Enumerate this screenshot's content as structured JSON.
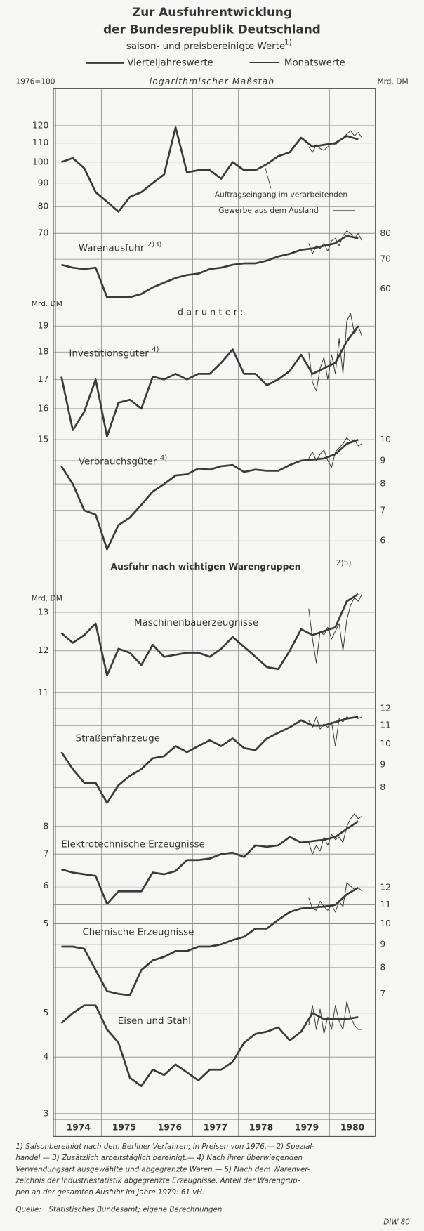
{
  "title_lines": [
    "Zur Ausfuhrentwicklung",
    "der Bundesrepublik Deutschland"
  ],
  "subtitle": "saison- und preisbereinigte Werte",
  "subtitle_note": "1)",
  "scale_note": "logarithmischer Maßstab",
  "series_styles": [
    {
      "name": "Vierteljahreswerte",
      "color": "#3a3a3a",
      "width": 2.4
    },
    {
      "name": "Monatswerte",
      "color": "#3a3a3a",
      "width": 0.9
    }
  ],
  "darunter": "darunter:",
  "group_header": "Ausfuhr nach wichtigen Warengruppen",
  "group_header_note": "2)5)",
  "time": {
    "xlim": [
      1973.95,
      1981.0
    ],
    "xticks": [
      1974,
      1975,
      1976,
      1977,
      1978,
      1979,
      1980
    ],
    "x_quarterly": [
      1974.125,
      1974.375,
      1974.625,
      1974.875,
      1975.125,
      1975.375,
      1975.625,
      1975.875,
      1976.125,
      1976.375,
      1976.625,
      1976.875,
      1977.125,
      1977.375,
      1977.625,
      1977.875,
      1978.125,
      1978.375,
      1978.625,
      1978.875,
      1979.125,
      1979.375,
      1979.625,
      1979.875,
      1980.125,
      1980.375,
      1980.625
    ],
    "x_monthly": [
      1979.542,
      1979.625,
      1979.708,
      1979.792,
      1979.875,
      1979.958,
      1980.042,
      1980.125,
      1980.208,
      1980.292,
      1980.375,
      1980.458,
      1980.542,
      1980.625,
      1980.708
    ]
  },
  "chart_data": [
    {
      "type": "line",
      "unit": "1976=100",
      "annotation": [
        "Auftragseingang im verarbeitenden",
        "Gewerbe aus dem Ausland"
      ],
      "log_scale": true,
      "axis_side": "left",
      "ylim": [
        68,
        125
      ],
      "yticks": [
        70,
        80,
        90,
        100,
        110,
        120
      ],
      "quarterly": [
        100,
        102,
        97,
        86,
        82,
        78,
        84,
        86,
        90,
        94,
        119,
        95,
        96,
        96,
        92,
        100,
        96,
        96,
        99,
        103,
        105,
        113,
        108,
        109,
        110,
        114,
        112
      ],
      "monthly": [
        108,
        105,
        109,
        107,
        106,
        108,
        110,
        109,
        111,
        113,
        115,
        117,
        114,
        116,
        113
      ]
    },
    {
      "type": "line",
      "unit": "Mrd. DM",
      "label": "Warenausfuhr",
      "label_note": "2)3)",
      "log_scale": true,
      "axis_side": "right",
      "ylim": [
        56,
        82
      ],
      "yticks": [
        60,
        70,
        80
      ],
      "quarterly": [
        68,
        67,
        66.5,
        67,
        57.5,
        57.5,
        57.5,
        58.5,
        60.5,
        62,
        63.5,
        64.5,
        65,
        66.5,
        67,
        68,
        68.5,
        68.5,
        69.5,
        71,
        72,
        73.5,
        74,
        75,
        76,
        79,
        78
      ],
      "monthly": [
        76,
        72,
        75,
        74,
        76,
        73,
        77,
        78,
        75,
        79,
        81,
        80,
        78,
        80,
        77
      ]
    },
    {
      "type": "line",
      "unit": "Mrd. DM",
      "label": "Investitionsgüter",
      "label_note": "4)",
      "log_scale": true,
      "axis_side": "left",
      "ylim": [
        14.8,
        19.6
      ],
      "yticks": [
        15,
        16,
        17,
        18,
        19
      ],
      "quarterly": [
        17.1,
        15.3,
        15.9,
        17.0,
        15.1,
        16.2,
        16.3,
        16.0,
        17.1,
        17.0,
        17.2,
        17.0,
        17.2,
        17.2,
        17.6,
        18.1,
        17.2,
        17.2,
        16.8,
        17.0,
        17.3,
        17.9,
        17.2,
        17.4,
        17.6,
        18.4,
        19.0
      ],
      "monthly": [
        18.0,
        16.9,
        16.6,
        17.4,
        17.8,
        17.0,
        17.9,
        17.2,
        18.5,
        17.2,
        19.2,
        19.5,
        18.7,
        19.0,
        18.6
      ]
    },
    {
      "type": "line",
      "label": "Verbrauchsgüter",
      "label_note": "4)",
      "log_scale": true,
      "axis_side": "right",
      "ylim": [
        5.6,
        10.3
      ],
      "yticks": [
        6,
        7,
        8,
        9,
        10
      ],
      "quarterly": [
        8.75,
        8.0,
        7.0,
        6.85,
        5.75,
        6.5,
        6.75,
        7.2,
        7.7,
        8.0,
        8.35,
        8.4,
        8.65,
        8.6,
        8.75,
        8.8,
        8.5,
        8.6,
        8.55,
        8.55,
        8.8,
        9.0,
        9.05,
        9.1,
        9.3,
        9.8,
        10.0
      ],
      "monthly": [
        9.1,
        9.4,
        9.0,
        9.3,
        9.5,
        9.0,
        8.7,
        9.4,
        9.6,
        9.8,
        10.1,
        9.9,
        10.0,
        9.7,
        9.8
      ]
    },
    {
      "type": "line",
      "unit": "Mrd. DM",
      "label": "Maschinenbauerzeugnisse",
      "log_scale": true,
      "axis_side": "left",
      "ylim": [
        10.8,
        13.6
      ],
      "yticks": [
        11,
        12,
        13
      ],
      "quarterly": [
        12.45,
        12.2,
        12.4,
        12.7,
        11.4,
        12.05,
        11.95,
        11.65,
        12.15,
        11.85,
        11.9,
        11.95,
        11.95,
        11.85,
        12.05,
        12.35,
        12.1,
        11.85,
        11.6,
        11.55,
        12.0,
        12.55,
        12.4,
        12.5,
        12.6,
        13.3,
        13.5
      ],
      "monthly": [
        13.1,
        12.3,
        11.7,
        12.5,
        12.4,
        12.6,
        12.3,
        12.5,
        12.7,
        12.0,
        12.8,
        13.2,
        13.4,
        13.3,
        13.5
      ]
    },
    {
      "type": "line",
      "label": "Straßenfahrzeuge",
      "log_scale": true,
      "axis_side": "right",
      "ylim": [
        7.2,
        12.3
      ],
      "yticks": [
        8,
        9,
        10,
        11,
        12
      ],
      "quarterly": [
        9.6,
        8.8,
        8.2,
        8.2,
        7.4,
        8.1,
        8.5,
        8.8,
        9.3,
        9.4,
        9.9,
        9.6,
        9.9,
        10.2,
        9.9,
        10.3,
        9.8,
        9.7,
        10.3,
        10.6,
        10.9,
        11.3,
        11.0,
        11.0,
        11.2,
        11.4,
        11.5
      ],
      "monthly": [
        11.3,
        10.9,
        11.5,
        10.8,
        11.1,
        10.9,
        11.2,
        9.9,
        11.4,
        11.2,
        11.5,
        11.4,
        11.5,
        11.4,
        11.5
      ]
    },
    {
      "type": "line",
      "label": "Elektrotechnische Erzeugnisse",
      "log_scale": true,
      "axis_side": "left",
      "ylim": [
        4.8,
        8.6
      ],
      "yticks": [
        5,
        6,
        7,
        8
      ],
      "quarterly": [
        6.5,
        6.4,
        6.35,
        6.3,
        5.5,
        5.85,
        5.85,
        5.85,
        6.4,
        6.35,
        6.45,
        6.8,
        6.8,
        6.85,
        7.0,
        7.05,
        6.9,
        7.3,
        7.25,
        7.3,
        7.6,
        7.4,
        7.45,
        7.5,
        7.6,
        7.9,
        8.2
      ],
      "monthly": [
        7.4,
        7.0,
        7.3,
        7.1,
        7.6,
        7.3,
        7.7,
        7.5,
        7.6,
        7.4,
        8.0,
        8.3,
        8.5,
        8.3,
        8.4
      ]
    },
    {
      "type": "line",
      "label": "Chemische Erzeugnisse",
      "log_scale": true,
      "axis_side": "right",
      "ylim": [
        6.5,
        12.6
      ],
      "yticks": [
        7,
        8,
        9,
        10,
        11,
        12
      ],
      "quarterly": [
        8.9,
        8.9,
        8.8,
        7.9,
        7.1,
        7.0,
        6.95,
        7.9,
        8.3,
        8.45,
        8.7,
        8.7,
        8.9,
        8.9,
        9.0,
        9.2,
        9.35,
        9.75,
        9.75,
        10.2,
        10.6,
        10.8,
        10.85,
        10.9,
        11.0,
        11.6,
        12.0
      ],
      "monthly": [
        11.4,
        10.8,
        10.7,
        11.2,
        10.9,
        10.7,
        11.0,
        10.6,
        11.2,
        10.9,
        12.3,
        12.1,
        11.9,
        12.0,
        11.8
      ]
    },
    {
      "type": "line",
      "label": "Eisen und Stahl",
      "log_scale": true,
      "axis_side": "left",
      "ylim": [
        2.95,
        5.5
      ],
      "yticks": [
        3,
        4,
        5
      ],
      "quarterly": [
        4.75,
        5.0,
        5.2,
        5.2,
        4.6,
        4.3,
        3.6,
        3.45,
        3.75,
        3.65,
        3.85,
        3.7,
        3.55,
        3.75,
        3.75,
        3.9,
        4.3,
        4.5,
        4.55,
        4.65,
        4.35,
        4.55,
        5.0,
        4.85,
        4.85,
        4.85,
        4.9
      ],
      "monthly": [
        4.7,
        5.2,
        4.6,
        5.1,
        4.5,
        4.9,
        4.6,
        5.2,
        4.8,
        4.6,
        5.3,
        4.9,
        4.7,
        4.6,
        4.6
      ]
    }
  ],
  "footnotes": [
    "1) Saisonbereinigt nach dem Berliner Verfahren; in Preisen von 1976.— 2) Spezial-",
    "handel.— 3) Zusätzlich arbeitstäglich bereinigt.— 4) Nach ihrer überwiegenden",
    "Verwendungsart ausgewählte und abgegrenzte Waren.— 5) Nach dem Warenver-",
    "zeichnis der Industriestatistik abgegrenzte Erzeugnisse. Anteil der Warengrup-",
    "pen an der gesamten Ausfuhr im Jahre 1979: 61 vH."
  ],
  "source_label": "Quelle:",
  "source": "Statistisches Bundesamt; eigene Berechnungen.",
  "credit": "DIW 80"
}
